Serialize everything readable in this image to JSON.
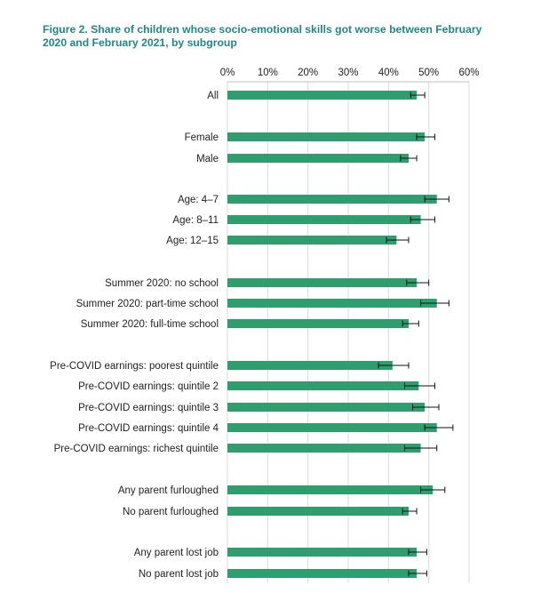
{
  "chart_data": {
    "type": "bar",
    "orientation": "horizontal",
    "title": "Figure 2. Share of children whose socio-emotional skills got worse between February 2020 and February 2021, by subgroup",
    "xlabel": "",
    "ylabel": "",
    "xlim": [
      0,
      60
    ],
    "ticks": [
      0,
      10,
      20,
      30,
      40,
      50,
      60
    ],
    "tick_labels": [
      "0%",
      "10%",
      "20%",
      "30%",
      "40%",
      "50%",
      "60%"
    ],
    "axis_position": "top",
    "grid": true,
    "bar_color": "#2e9e6e",
    "title_color": "#1f8a84",
    "groups": [
      {
        "categories": [
          {
            "label": "All",
            "value": 47,
            "ci_low": 45.5,
            "ci_high": 49.0
          }
        ]
      },
      {
        "categories": [
          {
            "label": "Female",
            "value": 49,
            "ci_low": 47.0,
            "ci_high": 51.5
          },
          {
            "label": "Male",
            "value": 45,
            "ci_low": 43.0,
            "ci_high": 47.0
          }
        ]
      },
      {
        "categories": [
          {
            "label": "Age: 4–7",
            "value": 52,
            "ci_low": 49.0,
            "ci_high": 55.0
          },
          {
            "label": "Age: 8–11",
            "value": 48,
            "ci_low": 45.5,
            "ci_high": 51.5
          },
          {
            "label": "Age: 12–15",
            "value": 42,
            "ci_low": 39.5,
            "ci_high": 45.0
          }
        ]
      },
      {
        "categories": [
          {
            "label": "Summer 2020: no school",
            "value": 47,
            "ci_low": 44.5,
            "ci_high": 50.0
          },
          {
            "label": "Summer 2020: part-time school",
            "value": 52,
            "ci_low": 48.0,
            "ci_high": 55.0
          },
          {
            "label": "Summer 2020: full-time school",
            "value": 45,
            "ci_low": 43.5,
            "ci_high": 47.5
          }
        ]
      },
      {
        "categories": [
          {
            "label": "Pre-COVID earnings: poorest quintile",
            "value": 41,
            "ci_low": 37.5,
            "ci_high": 45.0
          },
          {
            "label": "Pre-COVID earnings: quintile 2",
            "value": 47.5,
            "ci_low": 44.0,
            "ci_high": 51.5
          },
          {
            "label": "Pre-COVID earnings: quintile 3",
            "value": 49,
            "ci_low": 46.0,
            "ci_high": 52.5
          },
          {
            "label": "Pre-COVID earnings: quintile 4",
            "value": 52,
            "ci_low": 49.0,
            "ci_high": 56.0
          },
          {
            "label": "Pre-COVID earnings: richest quintile",
            "value": 48,
            "ci_low": 44.0,
            "ci_high": 52.0
          }
        ]
      },
      {
        "categories": [
          {
            "label": "Any parent furloughed",
            "value": 51,
            "ci_low": 48.0,
            "ci_high": 54.0
          },
          {
            "label": "No parent furloughed",
            "value": 45,
            "ci_low": 43.5,
            "ci_high": 47.0
          }
        ]
      },
      {
        "categories": [
          {
            "label": "Any parent lost job",
            "value": 47,
            "ci_low": 45.0,
            "ci_high": 49.5
          },
          {
            "label": "No parent lost job",
            "value": 47,
            "ci_low": 45.0,
            "ci_high": 49.5
          }
        ]
      }
    ]
  }
}
